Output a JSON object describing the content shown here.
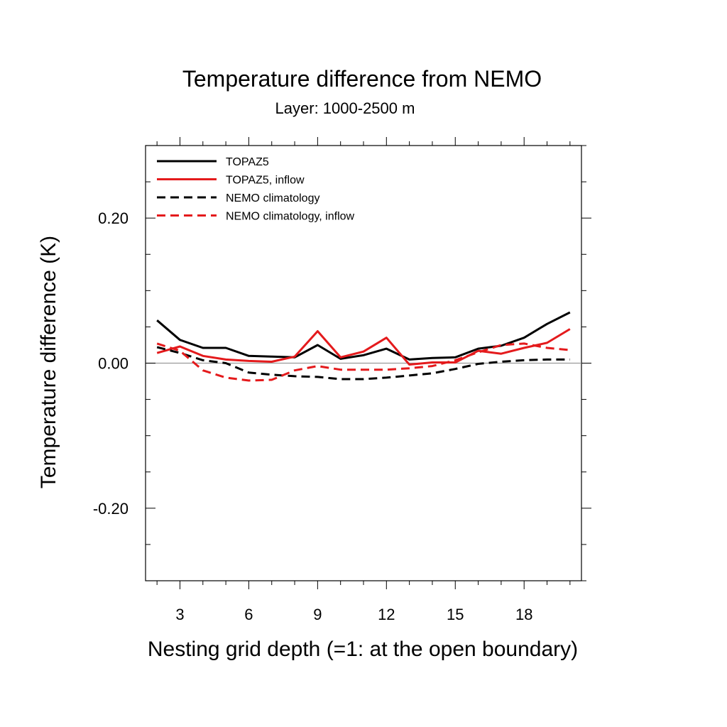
{
  "chart_data": {
    "type": "line",
    "title": "Temperature difference from NEMO",
    "subtitle": "Layer: 1000-2500 m",
    "xlabel": "Nesting grid depth (=1: at the open boundary)",
    "ylabel": "Temperature difference (K)",
    "xlim": [
      1.5,
      20.5
    ],
    "ylim": [
      -0.3,
      0.3
    ],
    "x_ticks": [
      3,
      6,
      9,
      12,
      15,
      18
    ],
    "x_tick_labels": [
      "3",
      "6",
      "9",
      "12",
      "15",
      "18"
    ],
    "y_ticks": [
      -0.2,
      0.0,
      0.2
    ],
    "y_tick_labels": [
      "-0.20",
      "0.00",
      "0.20"
    ],
    "zero_line": true,
    "grid": false,
    "legend_position": "top-left",
    "x": [
      2,
      3,
      4,
      5,
      6,
      7,
      8,
      9,
      10,
      11,
      12,
      13,
      14,
      15,
      16,
      17,
      18,
      19,
      20
    ],
    "series": [
      {
        "name": "TOPAZ5",
        "color": "#000000",
        "dash": "solid",
        "values": [
          0.059,
          0.032,
          0.021,
          0.021,
          0.01,
          0.009,
          0.008,
          0.025,
          0.006,
          0.011,
          0.02,
          0.005,
          0.007,
          0.008,
          0.02,
          0.024,
          0.035,
          0.054,
          0.07
        ]
      },
      {
        "name": "TOPAZ5, inflow",
        "color": "#e41a1c",
        "dash": "solid",
        "values": [
          0.014,
          0.023,
          0.01,
          0.005,
          0.003,
          0.002,
          0.009,
          0.044,
          0.008,
          0.016,
          0.035,
          -0.002,
          0.001,
          0.001,
          0.017,
          0.013,
          0.021,
          0.028,
          0.047
        ]
      },
      {
        "name": "NEMO climatology",
        "color": "#000000",
        "dash": "dashed",
        "values": [
          0.022,
          0.014,
          0.004,
          0.0,
          -0.013,
          -0.016,
          -0.018,
          -0.019,
          -0.022,
          -0.022,
          -0.02,
          -0.017,
          -0.014,
          -0.008,
          -0.001,
          0.002,
          0.004,
          0.005,
          0.005
        ]
      },
      {
        "name": "NEMO climatology, inflow",
        "color": "#e41a1c",
        "dash": "dashed",
        "values": [
          0.027,
          0.017,
          -0.01,
          -0.02,
          -0.024,
          -0.023,
          -0.01,
          -0.004,
          -0.009,
          -0.009,
          -0.009,
          -0.007,
          -0.004,
          0.004,
          0.015,
          0.025,
          0.027,
          0.021,
          0.018
        ]
      }
    ]
  }
}
